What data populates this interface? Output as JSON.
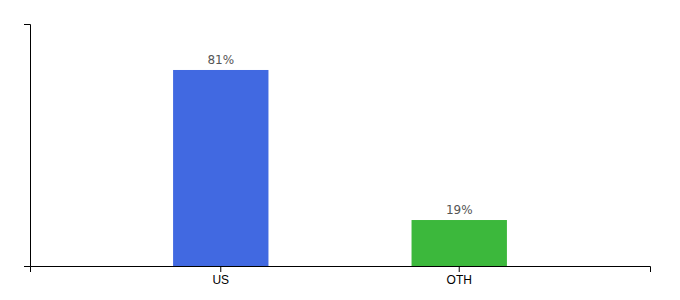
{
  "chart_data": {
    "type": "bar",
    "categories": [
      "US",
      "OTH"
    ],
    "values": [
      81,
      19
    ],
    "value_labels": [
      "81%",
      "19%"
    ],
    "colors": [
      "#4169e1",
      "#3cb83c"
    ],
    "ylim": [
      0,
      100
    ],
    "data_labels": true,
    "grid": false,
    "tick_labels": "x"
  }
}
